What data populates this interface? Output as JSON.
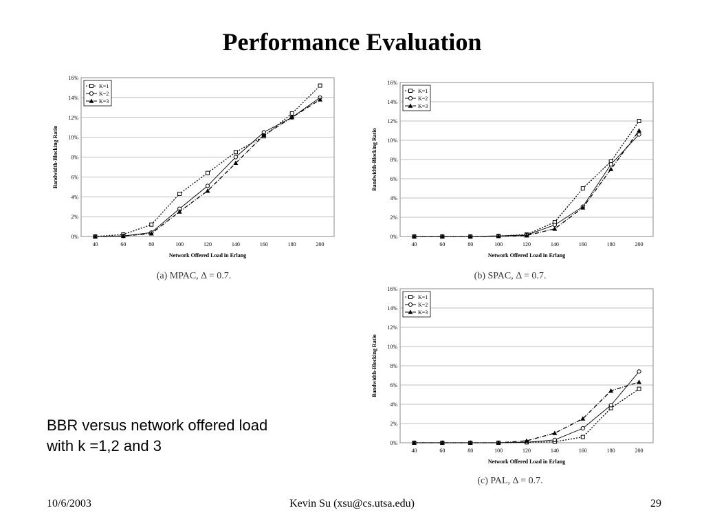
{
  "slide": {
    "title": "Performance Evaluation",
    "body_lines": [
      "BBR versus network offered load",
      "with k =1,2 and 3"
    ],
    "footer_date": "10/6/2003",
    "footer_author": "Kevin Su (xsu@cs.utsa.edu)",
    "footer_page": "29"
  },
  "chart_data": [
    {
      "type": "line",
      "caption": "(a) MPAC, Δ = 0.7.",
      "xlabel": "Network Offered Load in Erlang",
      "ylabel": "Bandwidth-Blocking Ratio",
      "x": [
        40,
        60,
        80,
        100,
        120,
        140,
        160,
        180,
        200
      ],
      "xlim": [
        40,
        200
      ],
      "ylim": [
        0,
        16
      ],
      "yticks": [
        "0%",
        "2%",
        "4%",
        "6%",
        "8%",
        "10%",
        "12%",
        "14%",
        "16%"
      ],
      "grid": true,
      "legend": "top-left",
      "series": [
        {
          "name": "K=1",
          "marker": "square",
          "dash": "dotted",
          "values": [
            0,
            0.2,
            1.2,
            4.3,
            6.4,
            8.5,
            10.1,
            12.4,
            15.2
          ]
        },
        {
          "name": "K=2",
          "marker": "circle",
          "dash": "solid",
          "values": [
            0,
            0.05,
            0.4,
            2.8,
            5.1,
            8.0,
            10.5,
            12.0,
            14.0
          ]
        },
        {
          "name": "K=3",
          "marker": "triangle",
          "dash": "dashdot",
          "values": [
            0,
            0.05,
            0.3,
            2.5,
            4.6,
            7.4,
            10.2,
            12.0,
            13.8
          ]
        }
      ]
    },
    {
      "type": "line",
      "caption": "(b) SPAC, Δ = 0.7.",
      "xlabel": "Network Offered Load in Erlang",
      "ylabel": "Bandwidth-Blocking Ratio",
      "x": [
        40,
        60,
        80,
        100,
        120,
        140,
        160,
        180,
        200
      ],
      "xlim": [
        40,
        200
      ],
      "ylim": [
        0,
        16
      ],
      "yticks": [
        "0%",
        "2%",
        "4%",
        "6%",
        "8%",
        "10%",
        "12%",
        "14%",
        "16%"
      ],
      "grid": true,
      "legend": "top-left",
      "series": [
        {
          "name": "K=1",
          "marker": "square",
          "dash": "dotted",
          "values": [
            0,
            0,
            0,
            0.05,
            0.2,
            1.5,
            5.0,
            7.8,
            12.0
          ]
        },
        {
          "name": "K=2",
          "marker": "circle",
          "dash": "solid",
          "values": [
            0,
            0,
            0,
            0.05,
            0.15,
            1.2,
            3.1,
            7.5,
            10.6
          ]
        },
        {
          "name": "K=3",
          "marker": "triangle",
          "dash": "dashdot",
          "values": [
            0,
            0,
            0,
            0.05,
            0.1,
            0.8,
            3.0,
            7.0,
            11.0
          ]
        }
      ]
    },
    {
      "type": "line",
      "caption": "(c) PAL, Δ = 0.7.",
      "xlabel": "Network Offered Load in Erlang",
      "ylabel": "Bandwidth-Blocking Ratio",
      "x": [
        40,
        60,
        80,
        100,
        120,
        140,
        160,
        180,
        200
      ],
      "xlim": [
        40,
        200
      ],
      "ylim": [
        0,
        16
      ],
      "yticks": [
        "0%",
        "2%",
        "4%",
        "6%",
        "8%",
        "10%",
        "12%",
        "14%",
        "16%"
      ],
      "grid": true,
      "legend": "top-left",
      "series": [
        {
          "name": "K=1",
          "marker": "square",
          "dash": "dotted",
          "values": [
            0,
            0,
            0,
            0,
            0.05,
            0.1,
            0.6,
            3.6,
            5.6
          ]
        },
        {
          "name": "K=2",
          "marker": "circle",
          "dash": "solid",
          "values": [
            0,
            0,
            0,
            0,
            0.05,
            0.3,
            1.5,
            3.9,
            7.4
          ]
        },
        {
          "name": "K=3",
          "marker": "triangle",
          "dash": "dashdot",
          "values": [
            0,
            0,
            0,
            0,
            0.2,
            1.0,
            2.5,
            5.4,
            6.3
          ]
        }
      ]
    }
  ]
}
